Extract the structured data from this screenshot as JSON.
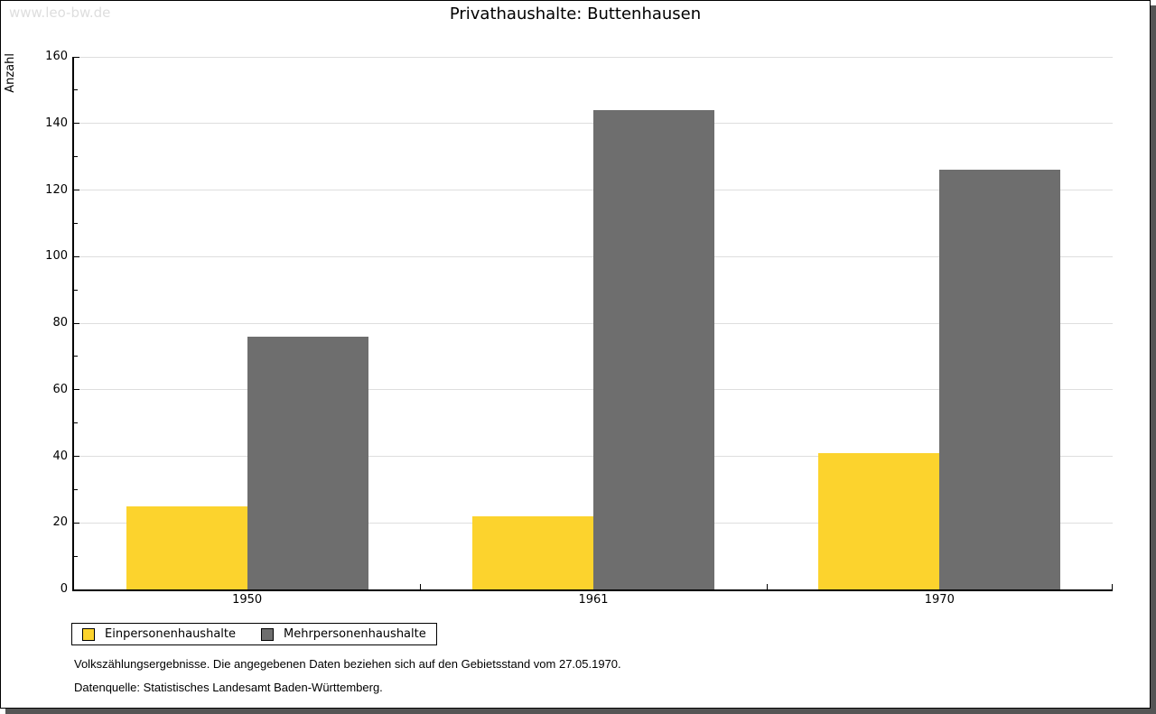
{
  "watermark": "www.leo-bw.de",
  "title": "Privathaushalte: Buttenhausen",
  "chart_data": {
    "type": "bar",
    "title": "Privathaushalte: Buttenhausen",
    "categories": [
      "1950",
      "1961",
      "1970"
    ],
    "series": [
      {
        "name": "Einpersonenhaushalte",
        "color": "#FCD32D",
        "values": [
          25,
          22,
          41
        ]
      },
      {
        "name": "Mehrpersonenhaushalte",
        "color": "#6E6E6E",
        "values": [
          76,
          144,
          126
        ]
      }
    ],
    "xlabel": "",
    "ylabel": "Anzahl",
    "ylim": [
      0,
      160
    ],
    "y_major_step": 20,
    "y_minor_step": 10,
    "grid": true,
    "gridline_color": "#DEDEDE",
    "legend_position": "bottom-left"
  },
  "footer": {
    "line1": "Volkszählungsergebnisse. Die angegebenen Daten beziehen sich auf den Gebietsstand vom 27.05.1970.",
    "line2": "Datenquelle: Statistisches Landesamt Baden-Württemberg."
  }
}
